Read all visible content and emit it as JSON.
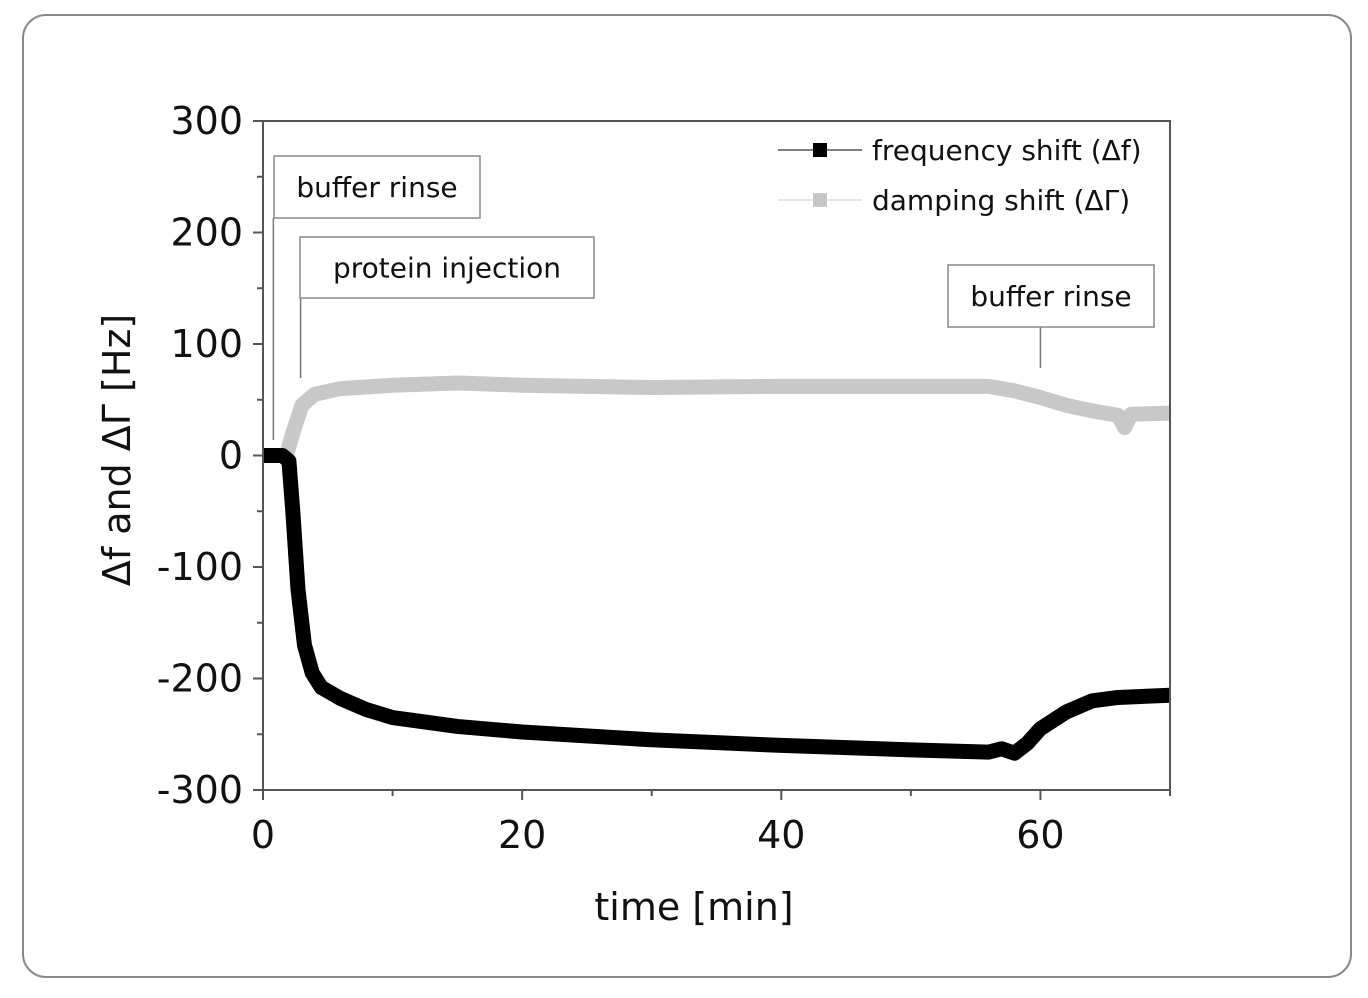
{
  "chart_data": {
    "type": "line",
    "xlabel": "time [min]",
    "ylabel": "Δf and ΔΓ [Hz]",
    "xlim": [
      0,
      70
    ],
    "ylim": [
      -300,
      300
    ],
    "xticks": [
      0,
      20,
      40,
      60
    ],
    "yticks": [
      300,
      200,
      100,
      0,
      -100,
      -200,
      -300
    ],
    "xtick_labels": [
      "0",
      "20",
      "40",
      "60"
    ],
    "ytick_labels": [
      "300",
      "200",
      "100",
      "0",
      "-100",
      "-200",
      "-300"
    ],
    "grid": false,
    "legend_position": "top-right",
    "series": [
      {
        "name": "frequency shift (Δf)",
        "color": "#000000",
        "x": [
          0,
          1.5,
          2,
          2.3,
          2.7,
          3.2,
          3.8,
          4.5,
          6,
          8,
          10,
          15,
          20,
          30,
          40,
          50,
          56,
          57,
          58,
          59,
          60,
          62,
          64,
          66,
          70
        ],
        "y": [
          0,
          0,
          -5,
          -50,
          -120,
          -170,
          -195,
          -208,
          -218,
          -228,
          -235,
          -243,
          -248,
          -255,
          -260,
          -264,
          -266,
          -263,
          -267,
          -258,
          -245,
          -230,
          -220,
          -217,
          -215
        ]
      },
      {
        "name": "damping shift (ΔΓ)",
        "color": "#c8c8c8",
        "x": [
          0,
          1.8,
          2.3,
          3,
          4,
          6,
          10,
          15,
          20,
          30,
          40,
          50,
          56,
          58,
          60,
          62,
          64,
          66,
          66.5,
          67,
          70
        ],
        "y": [
          0,
          0,
          20,
          45,
          55,
          60,
          63,
          65,
          63,
          61,
          62,
          62,
          62,
          58,
          52,
          45,
          40,
          36,
          25,
          37,
          38
        ]
      }
    ],
    "annotations": [
      {
        "text": "buffer rinse",
        "x": 0.8
      },
      {
        "text": "protein injection",
        "x": 2.9
      },
      {
        "text": "buffer rinse",
        "x": 60
      }
    ]
  }
}
